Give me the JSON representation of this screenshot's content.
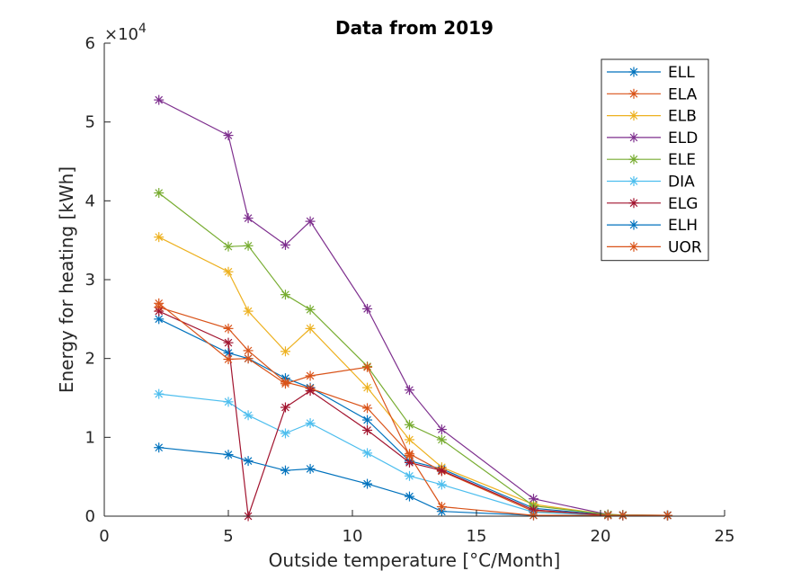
{
  "chart_data": {
    "type": "line",
    "title": "Data from 2019",
    "xlabel": "Outside temperature [°C/Month]",
    "ylabel": "Energy for heating [kWh]",
    "xlim": [
      0,
      25
    ],
    "ylim": [
      0,
      60000
    ],
    "xticks": [
      0,
      5,
      10,
      15,
      20,
      25
    ],
    "yticks": [
      0,
      1,
      2,
      3,
      4,
      5,
      6
    ],
    "y_multiplier_base": "×10",
    "y_multiplier_exp": "4",
    "y_scale": 10000,
    "grid": false,
    "legend_position": "top-right",
    "marker": "asterisk",
    "series": [
      {
        "name": "ELL",
        "color": "#0072BD",
        "x": [
          2.2,
          5.0,
          5.8,
          7.3,
          8.3,
          10.6,
          12.3,
          13.6,
          17.3,
          20.3,
          20.9,
          22.7
        ],
        "y": [
          25000,
          20700,
          20000,
          17500,
          16300,
          12200,
          7000,
          6000,
          1000,
          150,
          100,
          100
        ]
      },
      {
        "name": "ELA",
        "color": "#D95319",
        "x": [
          2.2,
          5.0,
          5.8,
          7.3,
          8.3,
          10.6,
          12.3,
          13.6,
          17.3,
          20.3,
          20.9,
          22.7
        ],
        "y": [
          26500,
          23800,
          21000,
          17000,
          16200,
          13700,
          7900,
          5700,
          600,
          150,
          100,
          100
        ]
      },
      {
        "name": "ELB",
        "color": "#EDB120",
        "x": [
          2.2,
          5.0,
          5.8,
          7.3,
          8.3,
          10.6,
          12.3,
          13.6,
          17.3,
          20.3,
          20.9,
          22.7
        ],
        "y": [
          35400,
          31000,
          26000,
          20900,
          23800,
          16300,
          9700,
          6200,
          1500,
          200,
          150,
          100
        ]
      },
      {
        "name": "ELD",
        "color": "#7E2F8E",
        "x": [
          2.2,
          5.0,
          5.8,
          7.3,
          8.3,
          10.6,
          12.3,
          13.6,
          17.3,
          20.3,
          20.9,
          22.7
        ],
        "y": [
          52800,
          48300,
          37800,
          34400,
          37400,
          26300,
          16000,
          11000,
          2200,
          200,
          150,
          100
        ]
      },
      {
        "name": "ELE",
        "color": "#77AC30",
        "x": [
          2.2,
          5.0,
          5.8,
          7.3,
          8.3,
          10.6,
          12.3,
          13.6,
          17.3,
          20.3,
          20.9,
          22.7
        ],
        "y": [
          41000,
          34200,
          34300,
          28100,
          26200,
          19000,
          11600,
          9700,
          1300,
          200,
          150,
          100
        ]
      },
      {
        "name": "DIA",
        "color": "#4DBEEE",
        "x": [
          2.2,
          5.0,
          5.8,
          7.3,
          8.3,
          10.6,
          12.3,
          13.6,
          17.3,
          20.3,
          20.9,
          22.7
        ],
        "y": [
          15500,
          14500,
          12800,
          10500,
          11800,
          8000,
          5100,
          4000,
          500,
          100,
          100,
          100
        ]
      },
      {
        "name": "ELG",
        "color": "#A2142F",
        "x": [
          2.2,
          5.0,
          5.8,
          7.3,
          8.3,
          10.6,
          12.3,
          13.6,
          17.3,
          20.3,
          20.9,
          22.7
        ],
        "y": [
          26000,
          22000,
          0,
          13800,
          15900,
          10900,
          6800,
          5800,
          800,
          100,
          100,
          100
        ]
      },
      {
        "name": "ELH",
        "color": "#0072BD",
        "x": [
          2.2,
          5.0,
          5.8,
          7.3,
          8.3,
          10.6,
          12.3,
          13.6,
          17.3,
          20.3,
          20.9,
          22.7
        ],
        "y": [
          8700,
          7800,
          7000,
          5800,
          6000,
          4100,
          2500,
          600,
          100,
          100,
          100,
          100
        ]
      },
      {
        "name": "UOR",
        "color": "#D95319",
        "x": [
          2.2,
          5.0,
          5.8,
          7.3,
          8.3,
          10.6,
          12.3,
          13.6,
          17.3,
          20.3,
          20.9,
          22.7
        ],
        "y": [
          27000,
          19900,
          20000,
          16800,
          17800,
          18900,
          7700,
          1200,
          100,
          100,
          100,
          100
        ]
      }
    ]
  }
}
